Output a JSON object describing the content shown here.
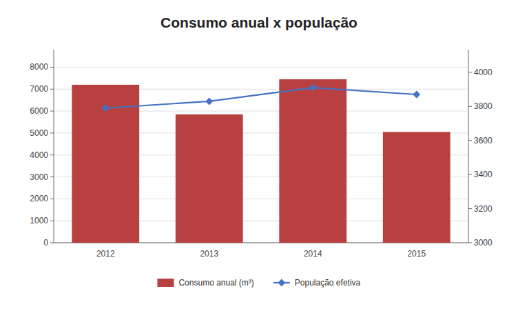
{
  "chart_data": {
    "type": "bar",
    "title": "Consumo anual x população",
    "categories": [
      "2012",
      "2013",
      "2014",
      "2015"
    ],
    "series": [
      {
        "name": "Consumo anual (m³)",
        "type": "bar",
        "color": "#B84040",
        "values": [
          7200,
          5850,
          7450,
          5050
        ]
      },
      {
        "name": "População efetiva",
        "type": "line",
        "color": "#4472C4",
        "marker": "diamond",
        "axis": "y2",
        "values": [
          3790,
          3830,
          3910,
          3870
        ]
      }
    ],
    "ylim": [
      0,
      8800
    ],
    "yticks": [
      0,
      1000,
      2000,
      3000,
      4000,
      5000,
      6000,
      7000,
      8000
    ],
    "y2lim": [
      3000,
      4133
    ],
    "y2ticks": [
      3000,
      3200,
      3400,
      3600,
      3800,
      4000
    ],
    "grid": true,
    "legend": "bottom"
  }
}
